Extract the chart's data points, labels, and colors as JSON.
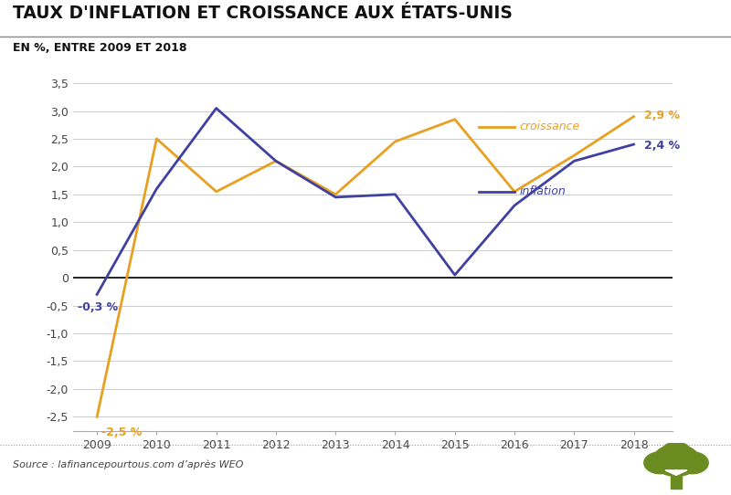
{
  "title": "TAUX D'INFLATION ET CROISSANCE AUX ÉTATS-UNIS",
  "subtitle": "EN %, ENTRE 2009 ET 2018",
  "source": "Source : lafinancepourtous.com d’après WEO",
  "years": [
    2009,
    2010,
    2011,
    2012,
    2013,
    2014,
    2015,
    2016,
    2017,
    2018
  ],
  "croissance": [
    -2.5,
    2.5,
    1.55,
    2.1,
    1.5,
    2.45,
    2.85,
    1.55,
    2.2,
    2.9
  ],
  "inflation": [
    -0.3,
    1.6,
    3.05,
    2.1,
    1.45,
    1.5,
    0.05,
    1.3,
    2.1,
    2.4
  ],
  "croissance_color": "#E8A020",
  "inflation_color": "#4040A0",
  "ylim": [
    -2.75,
    3.75
  ],
  "yticks": [
    -2.5,
    -2.0,
    -1.5,
    -1.0,
    -0.5,
    0.0,
    0.5,
    1.0,
    1.5,
    2.0,
    2.5,
    3.0,
    3.5
  ],
  "ytick_labels": [
    "-2,5",
    "-2,0",
    "-1,5",
    "-1,0",
    "-0,5",
    "0",
    "0,5",
    "1,0",
    "1,5",
    "2,0",
    "2,5",
    "3,0",
    "3,5"
  ],
  "bg_color": "#FFFFFF",
  "grid_color": "#CCCCCC",
  "tree_color": "#6B8C21"
}
